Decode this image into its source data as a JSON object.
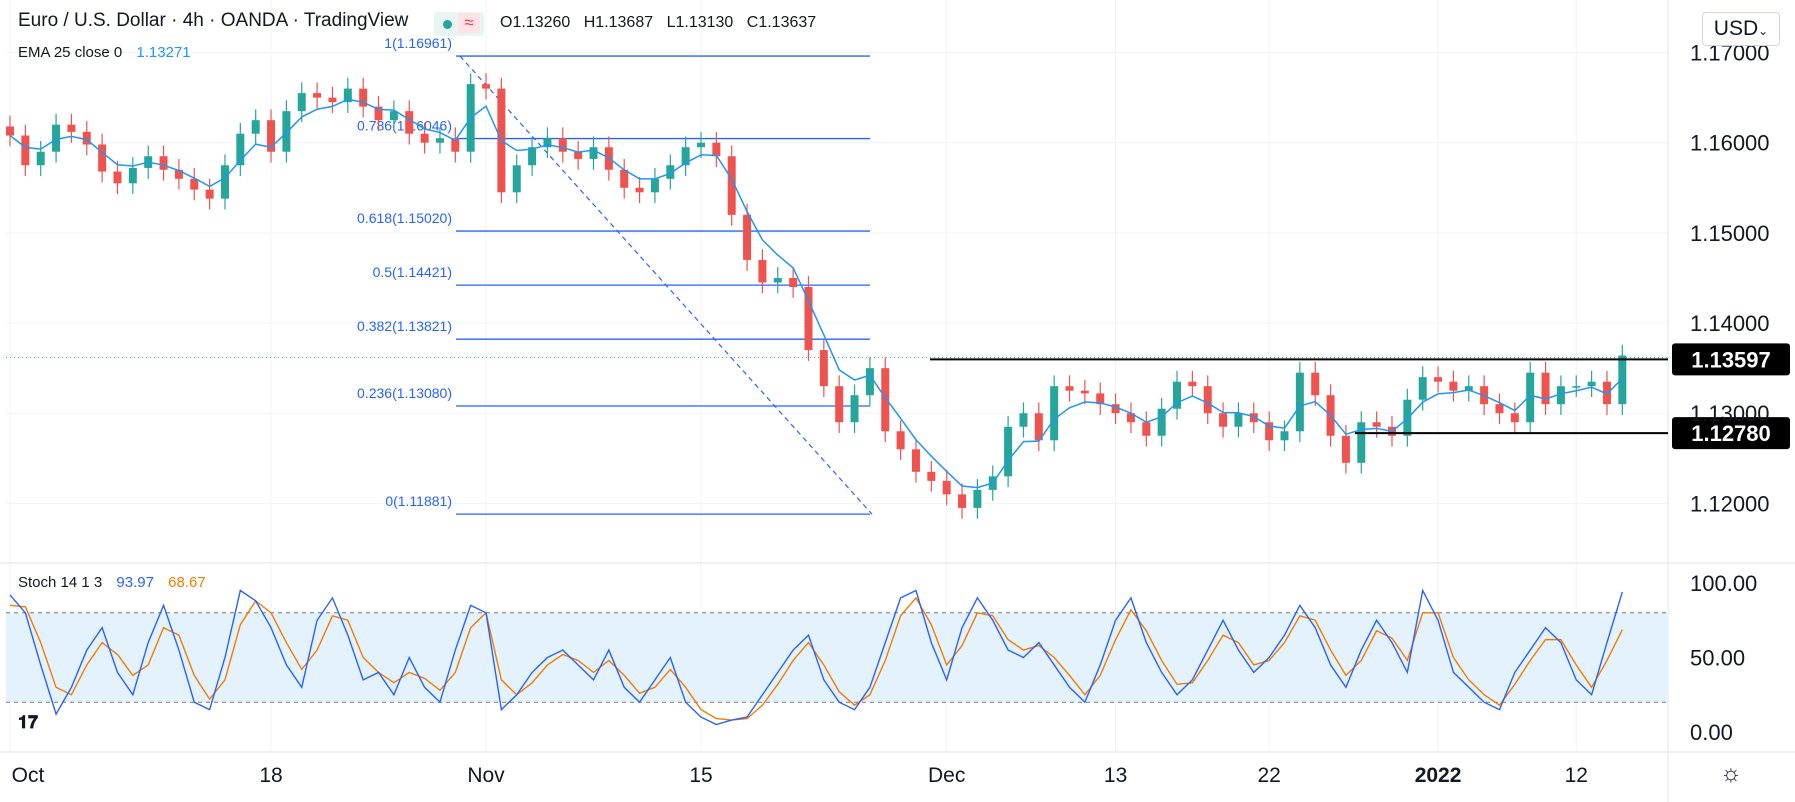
{
  "header": {
    "symbol": "Euro / U.S. Dollar",
    "interval": "4h",
    "broker": "OANDA",
    "platform": "TradingView",
    "sep": "·",
    "open": "O1.13260",
    "high": "H1.13687",
    "low": "L1.13130",
    "close": "C1.13637",
    "status_icon": "≈"
  },
  "indicator": {
    "label": "EMA 25 close 0",
    "value": "1.13271"
  },
  "stoch_legend": {
    "label": "Stoch 14 1 3",
    "k": "93.97",
    "d": "68.67"
  },
  "currency_select": "USD",
  "colors": {
    "up": "#26a69a",
    "down": "#ef5350",
    "ema": "#2196f3",
    "fib": "#2962ff",
    "stoch_k": "#2962ff",
    "stoch_d": "#f57c00",
    "band": "#e3f2fd"
  },
  "chart_data": {
    "type": "candlestick",
    "title": "Euro / U.S. Dollar 4h OANDA",
    "y_ticks": [
      1.17,
      1.16,
      1.15,
      1.14,
      1.13,
      1.12
    ],
    "y_tick_labels": [
      "1.17000",
      "1.16000",
      "1.15000",
      "1.14000",
      "1.13000",
      "1.12000"
    ],
    "ylim": [
      1.1145,
      1.1725
    ],
    "x_ticks": [
      {
        "label": "Oct",
        "t": 0,
        "bold": false
      },
      {
        "label": "18",
        "t": 17,
        "bold": false
      },
      {
        "label": "Nov",
        "t": 31,
        "bold": false
      },
      {
        "label": "15",
        "t": 45,
        "bold": false
      },
      {
        "label": "Dec",
        "t": 61,
        "bold": false
      },
      {
        "label": "13",
        "t": 72,
        "bold": false
      },
      {
        "label": "22",
        "t": 82,
        "bold": false
      },
      {
        "label": "2022",
        "t": 93,
        "bold": true
      },
      {
        "label": "12",
        "t": 102,
        "bold": false
      }
    ],
    "close_series": [
      [
        0,
        1.1608
      ],
      [
        1,
        1.1575
      ],
      [
        2,
        1.159
      ],
      [
        3,
        1.162
      ],
      [
        4,
        1.1612
      ],
      [
        5,
        1.1598
      ],
      [
        6,
        1.1568
      ],
      [
        7,
        1.1555
      ],
      [
        8,
        1.1572
      ],
      [
        9,
        1.1585
      ],
      [
        10,
        1.157
      ],
      [
        11,
        1.156
      ],
      [
        12,
        1.1548
      ],
      [
        13,
        1.1538
      ],
      [
        14,
        1.1575
      ],
      [
        15,
        1.161
      ],
      [
        16,
        1.1625
      ],
      [
        17,
        1.159
      ],
      [
        18,
        1.1635
      ],
      [
        19,
        1.1655
      ],
      [
        20,
        1.165
      ],
      [
        21,
        1.1645
      ],
      [
        22,
        1.166
      ],
      [
        23,
        1.164
      ],
      [
        24,
        1.1625
      ],
      [
        25,
        1.1635
      ],
      [
        26,
        1.161
      ],
      [
        27,
        1.16
      ],
      [
        28,
        1.1605
      ],
      [
        29,
        1.159
      ],
      [
        30,
        1.1665
      ],
      [
        31,
        1.166
      ],
      [
        32,
        1.1545
      ],
      [
        33,
        1.1575
      ],
      [
        34,
        1.1595
      ],
      [
        35,
        1.1605
      ],
      [
        36,
        1.159
      ],
      [
        37,
        1.1582
      ],
      [
        38,
        1.1595
      ],
      [
        39,
        1.157
      ],
      [
        40,
        1.155
      ],
      [
        41,
        1.1545
      ],
      [
        42,
        1.156
      ],
      [
        43,
        1.1575
      ],
      [
        44,
        1.1595
      ],
      [
        45,
        1.16
      ],
      [
        46,
        1.1585
      ],
      [
        47,
        1.152
      ],
      [
        48,
        1.147
      ],
      [
        49,
        1.1445
      ],
      [
        50,
        1.145
      ],
      [
        51,
        1.144
      ],
      [
        52,
        1.137
      ],
      [
        53,
        1.133
      ],
      [
        54,
        1.129
      ],
      [
        55,
        1.132
      ],
      [
        56,
        1.135
      ],
      [
        57,
        1.128
      ],
      [
        58,
        1.126
      ],
      [
        59,
        1.1235
      ],
      [
        60,
        1.1225
      ],
      [
        61,
        1.121
      ],
      [
        62,
        1.1195
      ],
      [
        63,
        1.1215
      ],
      [
        64,
        1.123
      ],
      [
        65,
        1.1285
      ],
      [
        66,
        1.13
      ],
      [
        67,
        1.127
      ],
      [
        68,
        1.133
      ],
      [
        69,
        1.1325
      ],
      [
        70,
        1.1322
      ],
      [
        71,
        1.131
      ],
      [
        72,
        1.13
      ],
      [
        73,
        1.129
      ],
      [
        74,
        1.1275
      ],
      [
        75,
        1.1305
      ],
      [
        76,
        1.1335
      ],
      [
        77,
        1.133
      ],
      [
        78,
        1.13
      ],
      [
        79,
        1.1285
      ],
      [
        80,
        1.13
      ],
      [
        81,
        1.129
      ],
      [
        82,
        1.127
      ],
      [
        83,
        1.128
      ],
      [
        84,
        1.1345
      ],
      [
        85,
        1.132
      ],
      [
        86,
        1.1275
      ],
      [
        87,
        1.1245
      ],
      [
        88,
        1.129
      ],
      [
        89,
        1.1285
      ],
      [
        90,
        1.1275
      ],
      [
        91,
        1.1315
      ],
      [
        92,
        1.134
      ],
      [
        93,
        1.1335
      ],
      [
        94,
        1.1325
      ],
      [
        95,
        1.133
      ],
      [
        96,
        1.131
      ],
      [
        97,
        1.13
      ],
      [
        98,
        1.129
      ],
      [
        99,
        1.1345
      ],
      [
        100,
        1.131
      ],
      [
        101,
        1.133
      ],
      [
        102,
        1.133
      ],
      [
        103,
        1.1335
      ],
      [
        104,
        1.131
      ],
      [
        105,
        1.1364
      ]
    ],
    "fib_retracement": {
      "levels": [
        {
          "label": "1(1.16961)",
          "value": 1.16961
        },
        {
          "label": "0.786(1.16046)",
          "value": 1.16046
        },
        {
          "label": "0.618(1.15020)",
          "value": 1.1502
        },
        {
          "label": "0.5(1.14421)",
          "value": 1.14421
        },
        {
          "label": "0.382(1.13821)",
          "value": 1.13821
        },
        {
          "label": "0.236(1.13080)",
          "value": 1.1308
        },
        {
          "label": "0(1.11881)",
          "value": 1.11881
        }
      ]
    },
    "horizontal_levels": [
      {
        "label": "1.13597",
        "value": 1.13597
      },
      {
        "label": "1.12780",
        "value": 1.1278
      }
    ],
    "stochastic": {
      "y_ticks": [
        100,
        50,
        0
      ],
      "y_tick_labels": [
        "100.00",
        "50.00",
        "0.00"
      ],
      "band": [
        20,
        80
      ],
      "k": [
        92,
        80,
        45,
        12,
        30,
        55,
        70,
        40,
        25,
        60,
        85,
        55,
        20,
        15,
        50,
        95,
        88,
        70,
        45,
        30,
        75,
        90,
        65,
        35,
        40,
        25,
        50,
        30,
        20,
        55,
        85,
        80,
        15,
        25,
        40,
        50,
        55,
        45,
        35,
        55,
        30,
        20,
        35,
        50,
        20,
        10,
        5,
        8,
        10,
        25,
        40,
        55,
        65,
        35,
        20,
        15,
        30,
        60,
        90,
        95,
        60,
        35,
        70,
        90,
        75,
        55,
        50,
        60,
        45,
        30,
        20,
        45,
        75,
        90,
        60,
        40,
        25,
        35,
        55,
        75,
        55,
        40,
        50,
        65,
        85,
        70,
        45,
        30,
        55,
        75,
        60,
        40,
        95,
        75,
        40,
        30,
        20,
        15,
        40,
        55,
        70,
        60,
        35,
        25,
        60,
        93.97
      ],
      "d": [
        85,
        84,
        60,
        30,
        25,
        45,
        60,
        52,
        38,
        45,
        70,
        65,
        38,
        22,
        35,
        72,
        88,
        80,
        60,
        42,
        55,
        78,
        75,
        50,
        40,
        33,
        40,
        36,
        28,
        40,
        70,
        80,
        35,
        25,
        33,
        45,
        52,
        48,
        40,
        48,
        38,
        26,
        30,
        42,
        30,
        15,
        9,
        8,
        9,
        18,
        32,
        48,
        60,
        45,
        27,
        18,
        25,
        48,
        78,
        90,
        72,
        45,
        58,
        80,
        78,
        62,
        55,
        58,
        50,
        38,
        25,
        38,
        62,
        82,
        68,
        48,
        32,
        33,
        48,
        65,
        60,
        45,
        48,
        60,
        78,
        75,
        55,
        38,
        48,
        68,
        63,
        48,
        80,
        80,
        50,
        35,
        25,
        18,
        32,
        48,
        62,
        62,
        45,
        30,
        48,
        68.67
      ]
    }
  }
}
